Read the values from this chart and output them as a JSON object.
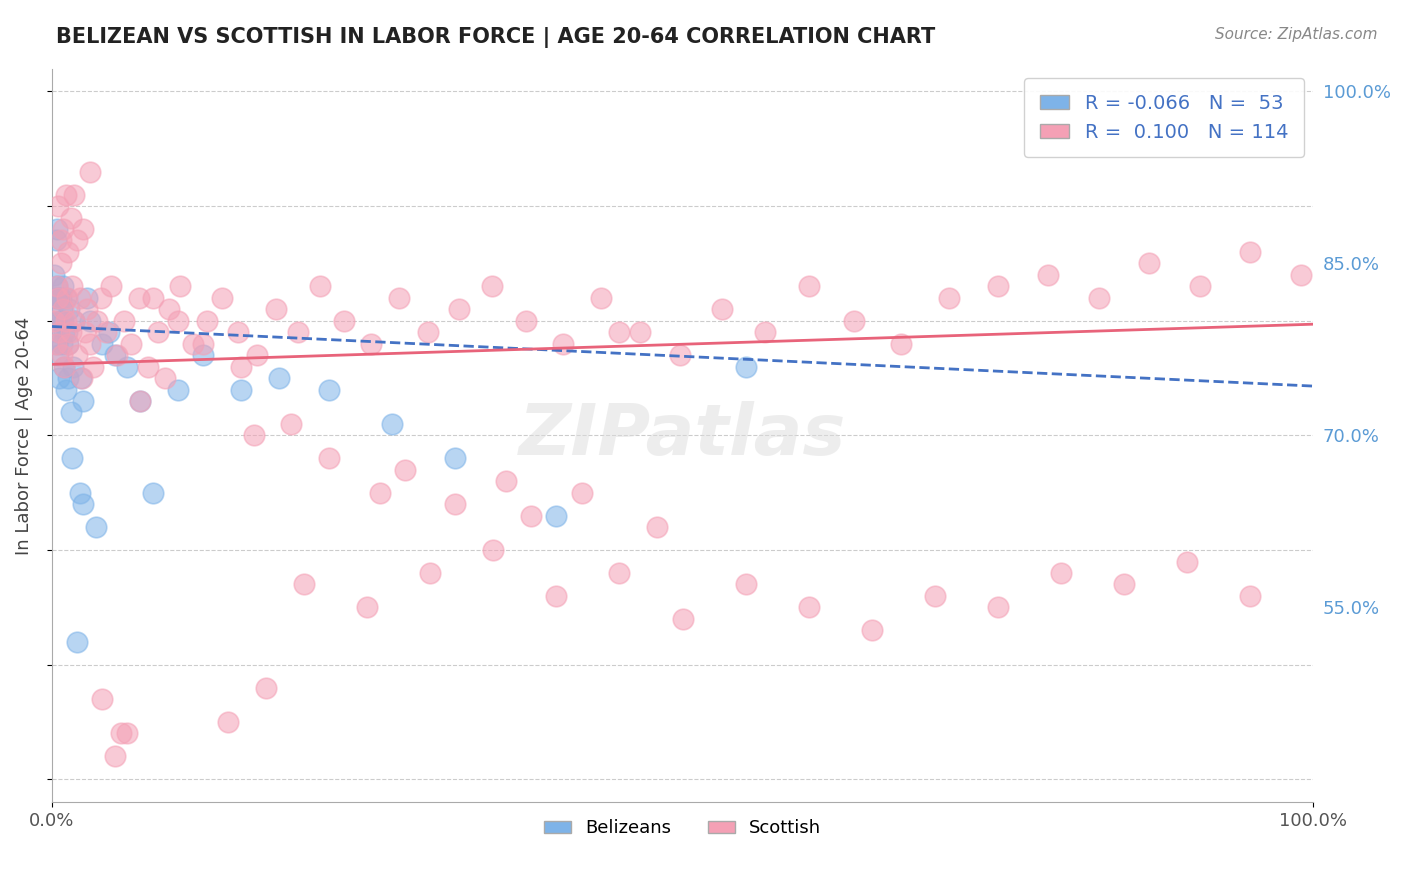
{
  "title": "BELIZEAN VS SCOTTISH IN LABOR FORCE | AGE 20-64 CORRELATION CHART",
  "source_text": "Source: ZipAtlas.com",
  "xlabel": "",
  "ylabel": "In Labor Force | Age 20-64",
  "xlim": [
    0.0,
    1.0
  ],
  "ylim": [
    0.38,
    1.02
  ],
  "xticks": [
    0.0,
    0.25,
    0.5,
    0.75,
    1.0
  ],
  "xticklabels": [
    "0.0%",
    "",
    "",
    "",
    "100.0%"
  ],
  "yticks_right": [
    1.0,
    0.85,
    0.7,
    0.55
  ],
  "ytick_right_labels": [
    "100.0%",
    "85.0%",
    "70.0%",
    "55.0%"
  ],
  "watermark": "ZIPatlas",
  "legend_blue_R": "-0.066",
  "legend_blue_N": "53",
  "legend_pink_R": "0.100",
  "legend_pink_N": "114",
  "blue_color": "#7EB3E8",
  "pink_color": "#F4A0B5",
  "blue_line_color": "#4472C4",
  "pink_line_color": "#E8637A",
  "background_color": "#FFFFFF",
  "belizean_x": [
    0.002,
    0.003,
    0.003,
    0.004,
    0.004,
    0.004,
    0.005,
    0.005,
    0.005,
    0.006,
    0.006,
    0.006,
    0.007,
    0.007,
    0.008,
    0.008,
    0.009,
    0.009,
    0.01,
    0.01,
    0.011,
    0.011,
    0.012,
    0.013,
    0.013,
    0.014,
    0.015,
    0.016,
    0.017,
    0.018,
    0.02,
    0.022,
    0.023,
    0.025,
    0.025,
    0.028,
    0.03,
    0.035,
    0.04,
    0.045,
    0.05,
    0.06,
    0.07,
    0.08,
    0.1,
    0.12,
    0.15,
    0.18,
    0.22,
    0.27,
    0.32,
    0.4,
    0.55
  ],
  "belizean_y": [
    0.84,
    0.87,
    0.82,
    0.78,
    0.83,
    0.88,
    0.79,
    0.82,
    0.77,
    0.8,
    0.82,
    0.75,
    0.8,
    0.82,
    0.81,
    0.78,
    0.83,
    0.8,
    0.79,
    0.76,
    0.74,
    0.82,
    0.79,
    0.75,
    0.78,
    0.81,
    0.72,
    0.68,
    0.76,
    0.8,
    0.52,
    0.65,
    0.75,
    0.73,
    0.64,
    0.82,
    0.8,
    0.62,
    0.78,
    0.79,
    0.77,
    0.76,
    0.73,
    0.65,
    0.74,
    0.77,
    0.74,
    0.75,
    0.74,
    0.71,
    0.68,
    0.63,
    0.76
  ],
  "scottish_x": [
    0.002,
    0.003,
    0.004,
    0.005,
    0.006,
    0.007,
    0.008,
    0.009,
    0.01,
    0.011,
    0.012,
    0.013,
    0.015,
    0.016,
    0.018,
    0.02,
    0.022,
    0.024,
    0.026,
    0.028,
    0.03,
    0.033,
    0.036,
    0.039,
    0.043,
    0.047,
    0.052,
    0.057,
    0.063,
    0.069,
    0.076,
    0.084,
    0.093,
    0.102,
    0.112,
    0.123,
    0.135,
    0.148,
    0.163,
    0.178,
    0.195,
    0.213,
    0.232,
    0.253,
    0.275,
    0.298,
    0.323,
    0.349,
    0.376,
    0.405,
    0.435,
    0.466,
    0.498,
    0.531,
    0.565,
    0.6,
    0.636,
    0.673,
    0.711,
    0.75,
    0.79,
    0.83,
    0.87,
    0.91,
    0.95,
    0.99,
    0.6,
    0.65,
    0.7,
    0.75,
    0.8,
    0.85,
    0.9,
    0.95,
    0.2,
    0.25,
    0.3,
    0.35,
    0.4,
    0.45,
    0.5,
    0.55,
    0.1,
    0.15,
    0.08,
    0.12,
    0.07,
    0.09,
    0.06,
    0.04,
    0.03,
    0.025,
    0.02,
    0.018,
    0.015,
    0.013,
    0.011,
    0.009,
    0.007,
    0.005,
    0.38,
    0.42,
    0.48,
    0.28,
    0.32,
    0.36,
    0.22,
    0.26,
    0.16,
    0.19,
    0.14,
    0.17,
    0.05,
    0.055,
    0.45
  ],
  "scottish_y": [
    0.8,
    0.78,
    0.83,
    0.82,
    0.79,
    0.85,
    0.77,
    0.81,
    0.76,
    0.8,
    0.82,
    0.78,
    0.79,
    0.83,
    0.8,
    0.77,
    0.82,
    0.75,
    0.79,
    0.81,
    0.78,
    0.76,
    0.8,
    0.82,
    0.79,
    0.83,
    0.77,
    0.8,
    0.78,
    0.82,
    0.76,
    0.79,
    0.81,
    0.83,
    0.78,
    0.8,
    0.82,
    0.79,
    0.77,
    0.81,
    0.79,
    0.83,
    0.8,
    0.78,
    0.82,
    0.79,
    0.81,
    0.83,
    0.8,
    0.78,
    0.82,
    0.79,
    0.77,
    0.81,
    0.79,
    0.83,
    0.8,
    0.78,
    0.82,
    0.83,
    0.84,
    0.82,
    0.85,
    0.83,
    0.86,
    0.84,
    0.55,
    0.53,
    0.56,
    0.55,
    0.58,
    0.57,
    0.59,
    0.56,
    0.57,
    0.55,
    0.58,
    0.6,
    0.56,
    0.58,
    0.54,
    0.57,
    0.8,
    0.76,
    0.82,
    0.78,
    0.73,
    0.75,
    0.44,
    0.47,
    0.93,
    0.88,
    0.87,
    0.91,
    0.89,
    0.86,
    0.91,
    0.88,
    0.87,
    0.9,
    0.63,
    0.65,
    0.62,
    0.67,
    0.64,
    0.66,
    0.68,
    0.65,
    0.7,
    0.71,
    0.45,
    0.48,
    0.42,
    0.44,
    0.79
  ],
  "blue_trend_x": [
    0.0,
    1.0
  ],
  "blue_trend_y_start": 0.795,
  "blue_trend_y_end": 0.743,
  "pink_trend_x": [
    0.0,
    1.0
  ],
  "pink_trend_y_start": 0.762,
  "pink_trend_y_end": 0.797
}
